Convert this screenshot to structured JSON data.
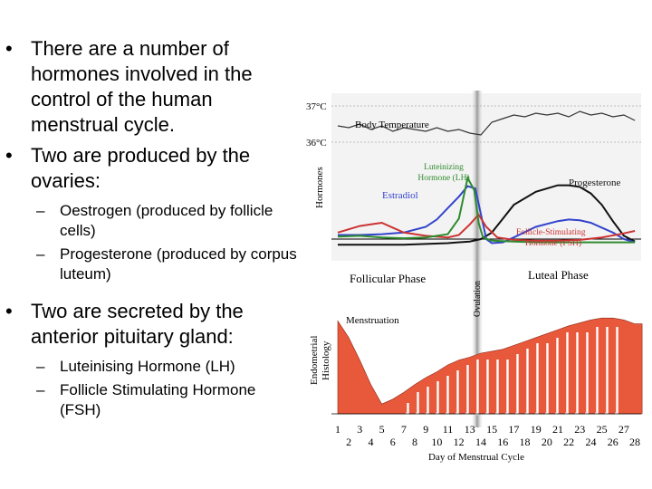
{
  "bullets": [
    {
      "text": "There are a number of hormones involved in the control of the human menstrual cycle."
    },
    {
      "text": "Two are produced by the ovaries:",
      "subs": [
        "Oestrogen (produced by follicle cells)",
        "Progesterone (produced by corpus luteum)"
      ]
    },
    {
      "text": "Two are secreted by the anterior pituitary gland:",
      "subs": [
        "Luteinising Hormone (LH)",
        "Follicle Stimulating Hormone (FSH)"
      ]
    }
  ],
  "chart_data": {
    "type": "line",
    "xlabel": "Day of Menstrual Cycle",
    "x_ticks_top": [
      "1",
      "3",
      "5",
      "7",
      "9",
      "11",
      "13",
      "15",
      "17",
      "19",
      "21",
      "23",
      "25",
      "27"
    ],
    "x_ticks_bottom": [
      "2",
      "4",
      "6",
      "8",
      "10",
      "12",
      "14",
      "16",
      "18",
      "20",
      "22",
      "24",
      "26",
      "28"
    ],
    "temperature": {
      "label": "Body Temperature",
      "ticks": [
        "37°C",
        "36°C"
      ],
      "days": [
        1,
        2,
        3,
        4,
        5,
        6,
        7,
        8,
        9,
        10,
        11,
        12,
        13,
        14,
        15,
        16,
        17,
        18,
        19,
        20,
        21,
        22,
        23,
        24,
        25,
        26,
        27,
        28
      ],
      "values": [
        36.45,
        36.4,
        36.5,
        36.35,
        36.45,
        36.3,
        36.4,
        36.35,
        36.3,
        36.4,
        36.3,
        36.35,
        36.25,
        36.2,
        36.55,
        36.65,
        36.75,
        36.7,
        36.8,
        36.75,
        36.8,
        36.7,
        36.85,
        36.75,
        36.8,
        36.7,
        36.75,
        36.6
      ]
    },
    "hormones_axis_label": "Hormones",
    "series": [
      {
        "name": "Luteinizing Hormone (LH)",
        "label_line1": "Luteinizing",
        "label_line2": "Hormone (LH)",
        "color": "#2e8b2e",
        "days": [
          1,
          3,
          5,
          7,
          9,
          11,
          12,
          12.8,
          13.4,
          13.8,
          14.2,
          15,
          17,
          19,
          21,
          23,
          25,
          27,
          28
        ],
        "values": [
          0.13,
          0.14,
          0.12,
          0.11,
          0.12,
          0.16,
          0.35,
          0.85,
          0.7,
          0.3,
          0.12,
          0.08,
          0.07,
          0.06,
          0.06,
          0.06,
          0.06,
          0.06,
          0.06
        ]
      },
      {
        "name": "Estradiol",
        "color": "#3344cc",
        "days": [
          1,
          3,
          5,
          7,
          9,
          10,
          11,
          12,
          12.8,
          13.5,
          14.5,
          15,
          16,
          17,
          19,
          21,
          22,
          23,
          24,
          25,
          26,
          27,
          28
        ],
        "values": [
          0.15,
          0.15,
          0.16,
          0.18,
          0.25,
          0.34,
          0.48,
          0.62,
          0.75,
          0.72,
          0.1,
          0.05,
          0.06,
          0.12,
          0.25,
          0.32,
          0.34,
          0.33,
          0.3,
          0.24,
          0.18,
          0.1,
          0.06
        ]
      },
      {
        "name": "Progesterone",
        "color": "#111111",
        "days": [
          1,
          3,
          5,
          7,
          9,
          11,
          13,
          14,
          15,
          16,
          17,
          19,
          21,
          22,
          23,
          24,
          25,
          26,
          27,
          28
        ],
        "values": [
          0.03,
          0.03,
          0.03,
          0.03,
          0.04,
          0.05,
          0.07,
          0.1,
          0.18,
          0.35,
          0.52,
          0.68,
          0.76,
          0.76,
          0.74,
          0.66,
          0.52,
          0.32,
          0.14,
          0.07
        ]
      },
      {
        "name": "Follicle-Stimulating Hormone (FSH)",
        "label_line1": "Follicle-Stimulating",
        "label_line2": "Hormone (FSH)",
        "color": "#cc3333",
        "days": [
          1,
          2,
          3,
          4,
          5,
          6,
          7,
          9,
          11,
          12,
          13,
          13.8,
          14.5,
          15.5,
          17,
          19,
          21,
          23,
          25,
          27,
          28
        ],
        "values": [
          0.18,
          0.22,
          0.26,
          0.28,
          0.3,
          0.24,
          0.18,
          0.14,
          0.12,
          0.15,
          0.28,
          0.4,
          0.25,
          0.12,
          0.09,
          0.08,
          0.08,
          0.09,
          0.12,
          0.17,
          0.2
        ]
      }
    ],
    "baseline": {
      "color": "#000000"
    },
    "phases": [
      "Follicular Phase",
      "Luteal Phase"
    ],
    "ovulation_label": "Ovulation",
    "histology": {
      "axis_line1": "Endometrial",
      "axis_line2": "Histology",
      "menstruation_label": "Menstruation",
      "color": "#e8583a",
      "days": [
        1,
        2,
        3,
        4,
        5,
        6,
        7,
        8,
        9,
        10,
        11,
        12,
        13,
        14,
        15,
        16,
        17,
        18,
        19,
        20,
        21,
        22,
        23,
        24,
        25,
        26,
        27,
        28
      ],
      "thickness": [
        0.95,
        0.78,
        0.55,
        0.3,
        0.1,
        0.15,
        0.22,
        0.3,
        0.37,
        0.43,
        0.5,
        0.55,
        0.58,
        0.62,
        0.64,
        0.66,
        0.7,
        0.74,
        0.78,
        0.82,
        0.86,
        0.9,
        0.93,
        0.96,
        0.98,
        0.98,
        0.96,
        0.92
      ]
    }
  }
}
